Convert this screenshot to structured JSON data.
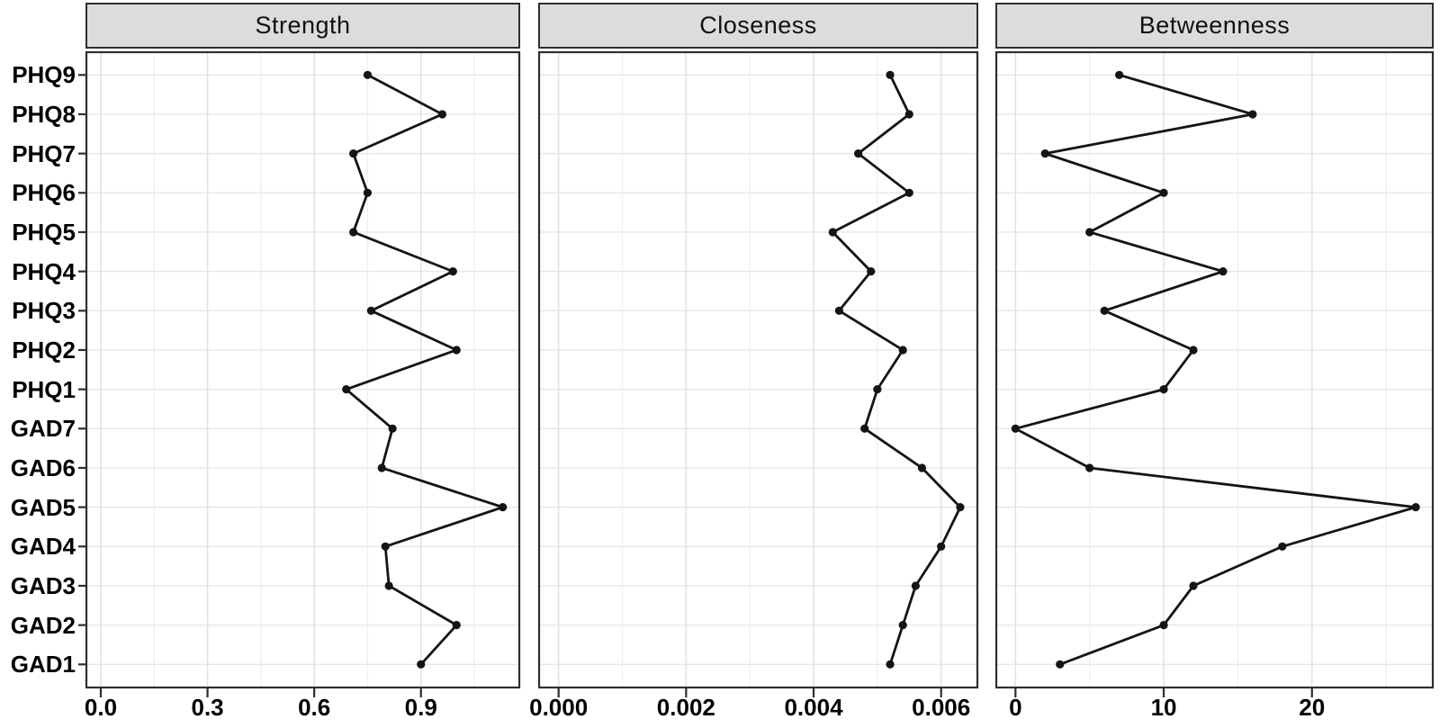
{
  "figure": {
    "y_axis_labels": [
      "PHQ9",
      "PHQ8",
      "PHQ7",
      "PHQ6",
      "PHQ5",
      "PHQ4",
      "PHQ3",
      "PHQ2",
      "PHQ1",
      "GAD7",
      "GAD6",
      "GAD5",
      "GAD4",
      "GAD3",
      "GAD2",
      "GAD1"
    ]
  },
  "styles": {
    "background": "#ffffff",
    "panel_background": "#ffffff",
    "strip_fill": "#dcdcdc",
    "panel_border": "#2e2e2e",
    "grid_major": "#e3e3e3",
    "grid_minor": "#eeeeee",
    "grid_row": "#e7e7e7",
    "line_color": "#141414",
    "point_color": "#141414",
    "text_color": "#000000",
    "tick_color": "#2e2e2e"
  },
  "chart_data": [
    {
      "type": "line",
      "title": "Strength",
      "orientation": "horizontal",
      "legend": "none",
      "grid": true,
      "categories": [
        "PHQ9",
        "PHQ8",
        "PHQ7",
        "PHQ6",
        "PHQ5",
        "PHQ4",
        "PHQ3",
        "PHQ2",
        "PHQ1",
        "GAD7",
        "GAD6",
        "GAD5",
        "GAD4",
        "GAD3",
        "GAD2",
        "GAD1"
      ],
      "values": [
        0.75,
        0.96,
        0.71,
        0.75,
        0.71,
        0.99,
        0.76,
        1.0,
        0.69,
        0.82,
        0.79,
        1.13,
        0.8,
        0.81,
        1.0,
        0.9
      ],
      "xlim": [
        -0.043,
        1.179
      ],
      "xticks": {
        "values": [
          0,
          0.3,
          0.6,
          0.9
        ],
        "labels": [
          "0.0",
          "0.3",
          "0.6",
          "0.9"
        ]
      },
      "minor_gridlines": [
        0.15,
        0.45,
        0.75,
        1.05
      ]
    },
    {
      "type": "line",
      "title": "Closeness",
      "orientation": "horizontal",
      "legend": "none",
      "grid": true,
      "categories": [
        "PHQ9",
        "PHQ8",
        "PHQ7",
        "PHQ6",
        "PHQ5",
        "PHQ4",
        "PHQ3",
        "PHQ2",
        "PHQ1",
        "GAD7",
        "GAD6",
        "GAD5",
        "GAD4",
        "GAD3",
        "GAD2",
        "GAD1"
      ],
      "values": [
        0.0052,
        0.0055,
        0.0047,
        0.0055,
        0.0043,
        0.0049,
        0.0044,
        0.0054,
        0.005,
        0.0048,
        0.0057,
        0.0063,
        0.006,
        0.0056,
        0.0054,
        0.0052
      ],
      "xlim": [
        -0.00032,
        0.006583
      ],
      "xticks": {
        "values": [
          0,
          0.002,
          0.004,
          0.006
        ],
        "labels": [
          "0.000",
          "0.002",
          "0.004",
          "0.006"
        ]
      },
      "minor_gridlines": [
        0.001,
        0.003,
        0.005
      ]
    },
    {
      "type": "line",
      "title": "Betweenness",
      "orientation": "horizontal",
      "legend": "none",
      "grid": true,
      "categories": [
        "PHQ9",
        "PHQ8",
        "PHQ7",
        "PHQ6",
        "PHQ5",
        "PHQ4",
        "PHQ3",
        "PHQ2",
        "PHQ1",
        "GAD7",
        "GAD6",
        "GAD5",
        "GAD4",
        "GAD3",
        "GAD2",
        "GAD1"
      ],
      "values": [
        7,
        16,
        2,
        10,
        5,
        14,
        6,
        12,
        10,
        0,
        5,
        27,
        18,
        12,
        10,
        3
      ],
      "xlim": [
        -1.354,
        28.21
      ],
      "xticks": {
        "values": [
          0,
          10,
          20
        ],
        "labels": [
          "0",
          "10",
          "20"
        ]
      },
      "minor_gridlines": [
        5,
        15,
        25
      ]
    }
  ]
}
